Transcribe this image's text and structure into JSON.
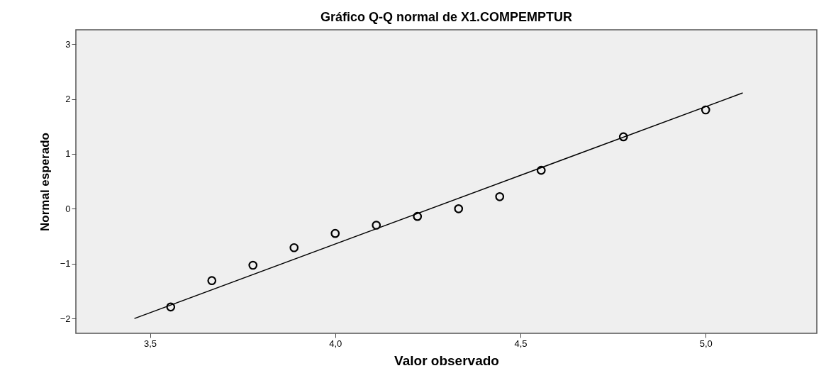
{
  "chart_data": {
    "type": "scatter",
    "title": "Gráfico Q-Q normal de X1.COMPEMPTUR",
    "xlabel": "Valor observado",
    "ylabel": "Normal esperado",
    "xlim": [
      3.3,
      5.3
    ],
    "xticks": [
      {
        "value": 3.5,
        "label": "3,5"
      },
      {
        "value": 4.0,
        "label": "4,0"
      },
      {
        "value": 4.5,
        "label": "4,5"
      },
      {
        "value": 5.0,
        "label": "5,0"
      }
    ],
    "ylim": [
      -2.27,
      3.26
    ],
    "yticks": [
      -2,
      -1,
      0,
      1,
      2,
      3
    ],
    "grid": false,
    "series": [
      {
        "marker": "circle",
        "color": "#000000",
        "x": [
          3.556,
          3.667,
          3.778,
          3.889,
          4.0,
          4.111,
          4.222,
          4.333,
          4.444,
          4.556,
          4.778,
          5.0
        ],
        "values": [
          -1.79,
          -1.31,
          -1.03,
          -0.71,
          -0.45,
          -0.3,
          -0.14,
          0.0,
          0.22,
          0.7,
          1.31,
          1.8
        ]
      },
      {
        "type": "line",
        "color": "#000000",
        "line_style": "solid",
        "x": [
          3.458,
          5.1
        ],
        "values": [
          -2.0,
          2.11
        ]
      }
    ]
  }
}
